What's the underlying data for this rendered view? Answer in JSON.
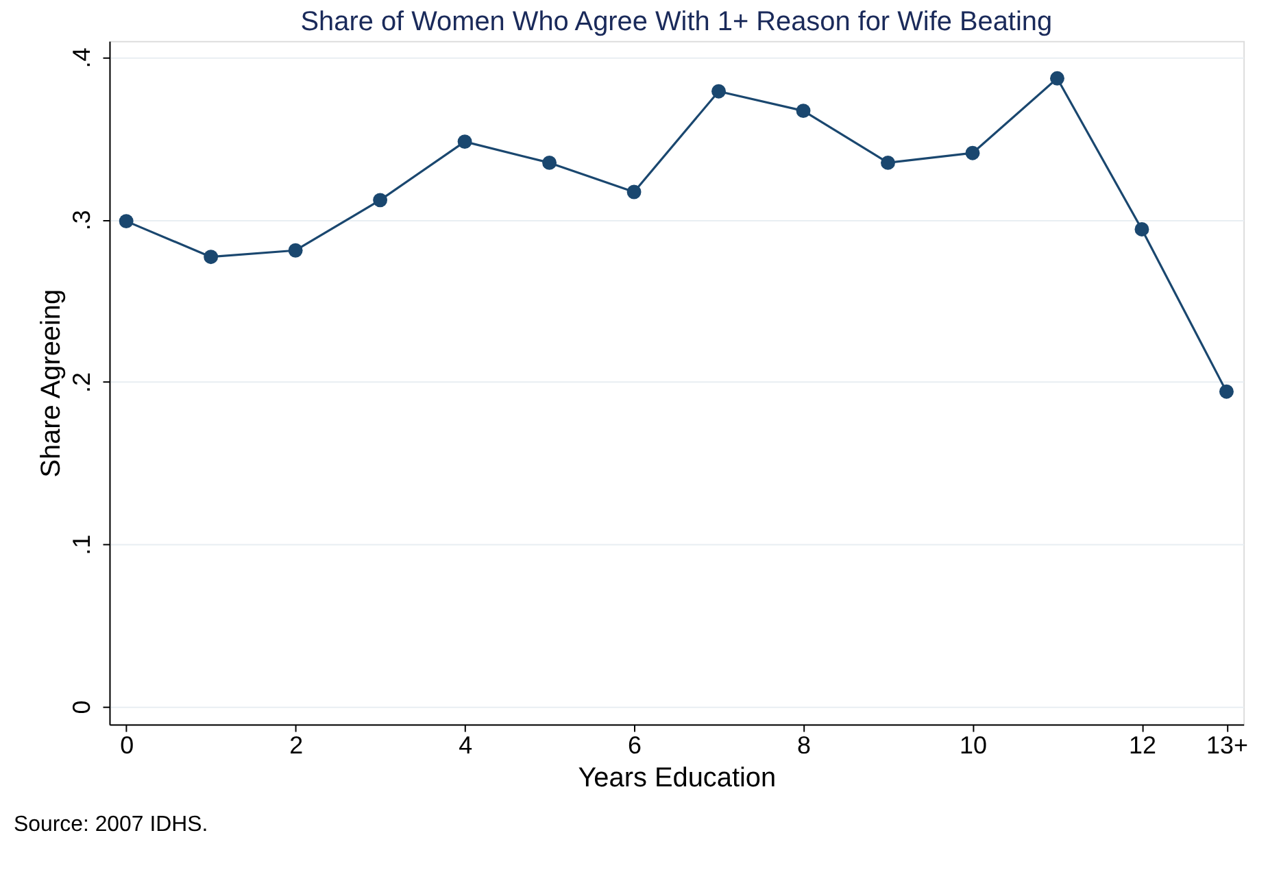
{
  "chart_data": {
    "type": "line",
    "title": "Share of Women Who Agree With 1+ Reason for Wife Beating",
    "xlabel": "Years Education",
    "ylabel": "Share Agreeing",
    "x": [
      0,
      1,
      2,
      3,
      4,
      5,
      6,
      7,
      8,
      9,
      10,
      11,
      12,
      13
    ],
    "series": [
      {
        "color": "#1a476f",
        "values": [
          0.299,
          0.277,
          0.281,
          0.312,
          0.348,
          0.335,
          0.317,
          0.379,
          0.367,
          0.335,
          0.341,
          0.387,
          0.294,
          0.194
        ]
      }
    ],
    "xlim": [
      -0.2,
      13.2
    ],
    "xticks": [
      0,
      2,
      4,
      6,
      8,
      10,
      12,
      {
        "value": 13,
        "label": "13+"
      }
    ],
    "ylim": [
      -0.011,
      0.41
    ],
    "yticks": [
      {
        "value": 0,
        "label": "0"
      },
      {
        "value": 0.1,
        "label": ".1"
      },
      {
        "value": 0.2,
        "label": ".2"
      },
      {
        "value": 0.3,
        "label": ".3"
      },
      {
        "value": 0.4,
        "label": ".4"
      }
    ],
    "grid": "y",
    "marker": "circle",
    "line_style": "solid",
    "annotations": [
      "Source: 2007 IDHS."
    ]
  }
}
